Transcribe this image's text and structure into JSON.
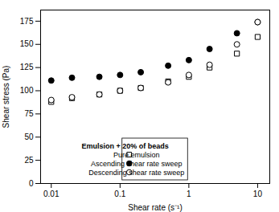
{
  "chart_data": {
    "type": "scatter",
    "xlabel": "Shear rate (s⁻¹)",
    "ylabel": "Shear stress (Pa)",
    "legend_title": "Emulsion + 20% of beads",
    "x": [
      0.01,
      0.02,
      0.05,
      0.1,
      0.2,
      0.5,
      1.0,
      2.0,
      5.0,
      10.0
    ],
    "series": [
      {
        "name": "Pure emulsion",
        "color": "black",
        "marker": "square-open",
        "values": [
          88,
          92,
          96,
          100,
          103,
          110,
          115,
          125,
          140,
          158
        ]
      },
      {
        "name": "Ascending shear rate sweep",
        "color": "black",
        "marker": "circle-filled",
        "values": [
          111,
          114,
          115,
          117,
          120,
          127,
          133,
          145,
          162,
          174
        ]
      },
      {
        "name": "Descending shear rate sweep",
        "color": "black",
        "marker": "circle-open",
        "values": [
          90,
          93,
          96,
          100,
          103,
          109,
          117,
          128,
          150,
          174
        ]
      }
    ],
    "log": "x",
    "xlim": [
      0.007,
      15
    ],
    "xticks": [
      0.01,
      0.1,
      1,
      10
    ],
    "ylim": [
      0,
      187
    ],
    "yticks": [
      0,
      25,
      50,
      75,
      100,
      125,
      150,
      175
    ],
    "grid": false,
    "legend": "lower center"
  }
}
